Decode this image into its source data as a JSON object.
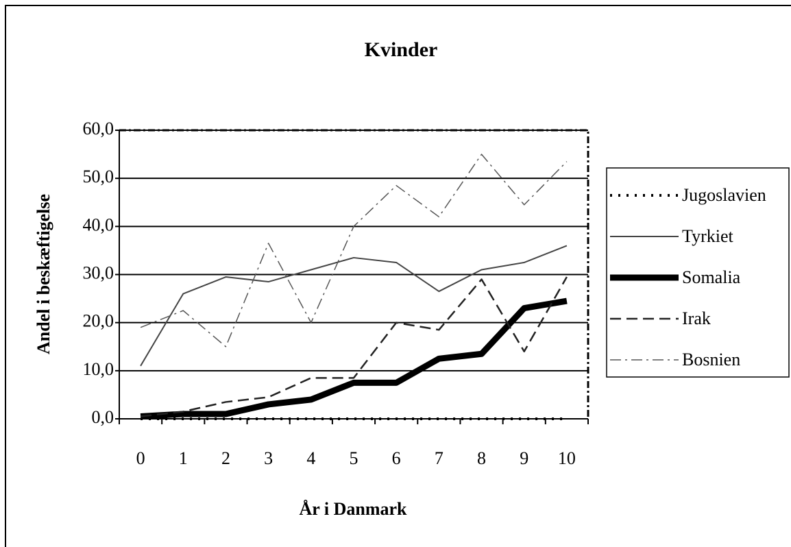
{
  "chart_data": {
    "type": "line",
    "title": "Kvinder",
    "xlabel": "År i Danmark",
    "ylabel": "Andel i beskæftigelse",
    "categories": [
      "0",
      "1",
      "2",
      "3",
      "4",
      "5",
      "6",
      "7",
      "8",
      "9",
      "10"
    ],
    "series": [
      {
        "name": "Jugoslavien",
        "color": "#000000",
        "style": "dotted",
        "values": [
          0,
          0,
          0,
          0,
          0,
          0,
          0,
          0,
          0,
          0,
          0
        ]
      },
      {
        "name": "Tyrkiet",
        "color": "#444444",
        "style": "solid",
        "values": [
          11,
          26,
          29.5,
          28.5,
          31,
          33.5,
          32.5,
          26.5,
          31,
          32.5,
          36
        ]
      },
      {
        "name": "Somalia",
        "color": "#000000",
        "style": "thick",
        "values": [
          0.5,
          1,
          1,
          3,
          4,
          7.5,
          7.5,
          12.5,
          13.5,
          23,
          24.5
        ]
      },
      {
        "name": "Irak",
        "color": "#222222",
        "style": "dashed",
        "values": [
          0.5,
          1.5,
          3.5,
          4.5,
          8.5,
          8.5,
          20,
          18.5,
          29,
          14,
          29.5
        ]
      },
      {
        "name": "Bosnien",
        "color": "#555555",
        "style": "dashdot",
        "values": [
          19,
          22.5,
          15,
          36.5,
          20,
          40,
          48.5,
          42,
          55,
          44.5,
          53.5
        ]
      }
    ],
    "ylim": [
      0,
      60
    ],
    "yticks": [
      {
        "value": 0,
        "label": "0,0"
      },
      {
        "value": 10,
        "label": "10,0"
      },
      {
        "value": 20,
        "label": "20,0"
      },
      {
        "value": 30,
        "label": "30,0"
      },
      {
        "value": 40,
        "label": "40,0"
      },
      {
        "value": 50,
        "label": "50,0"
      },
      {
        "value": 60,
        "label": "60,0"
      }
    ],
    "grid": true,
    "legend": "right"
  }
}
